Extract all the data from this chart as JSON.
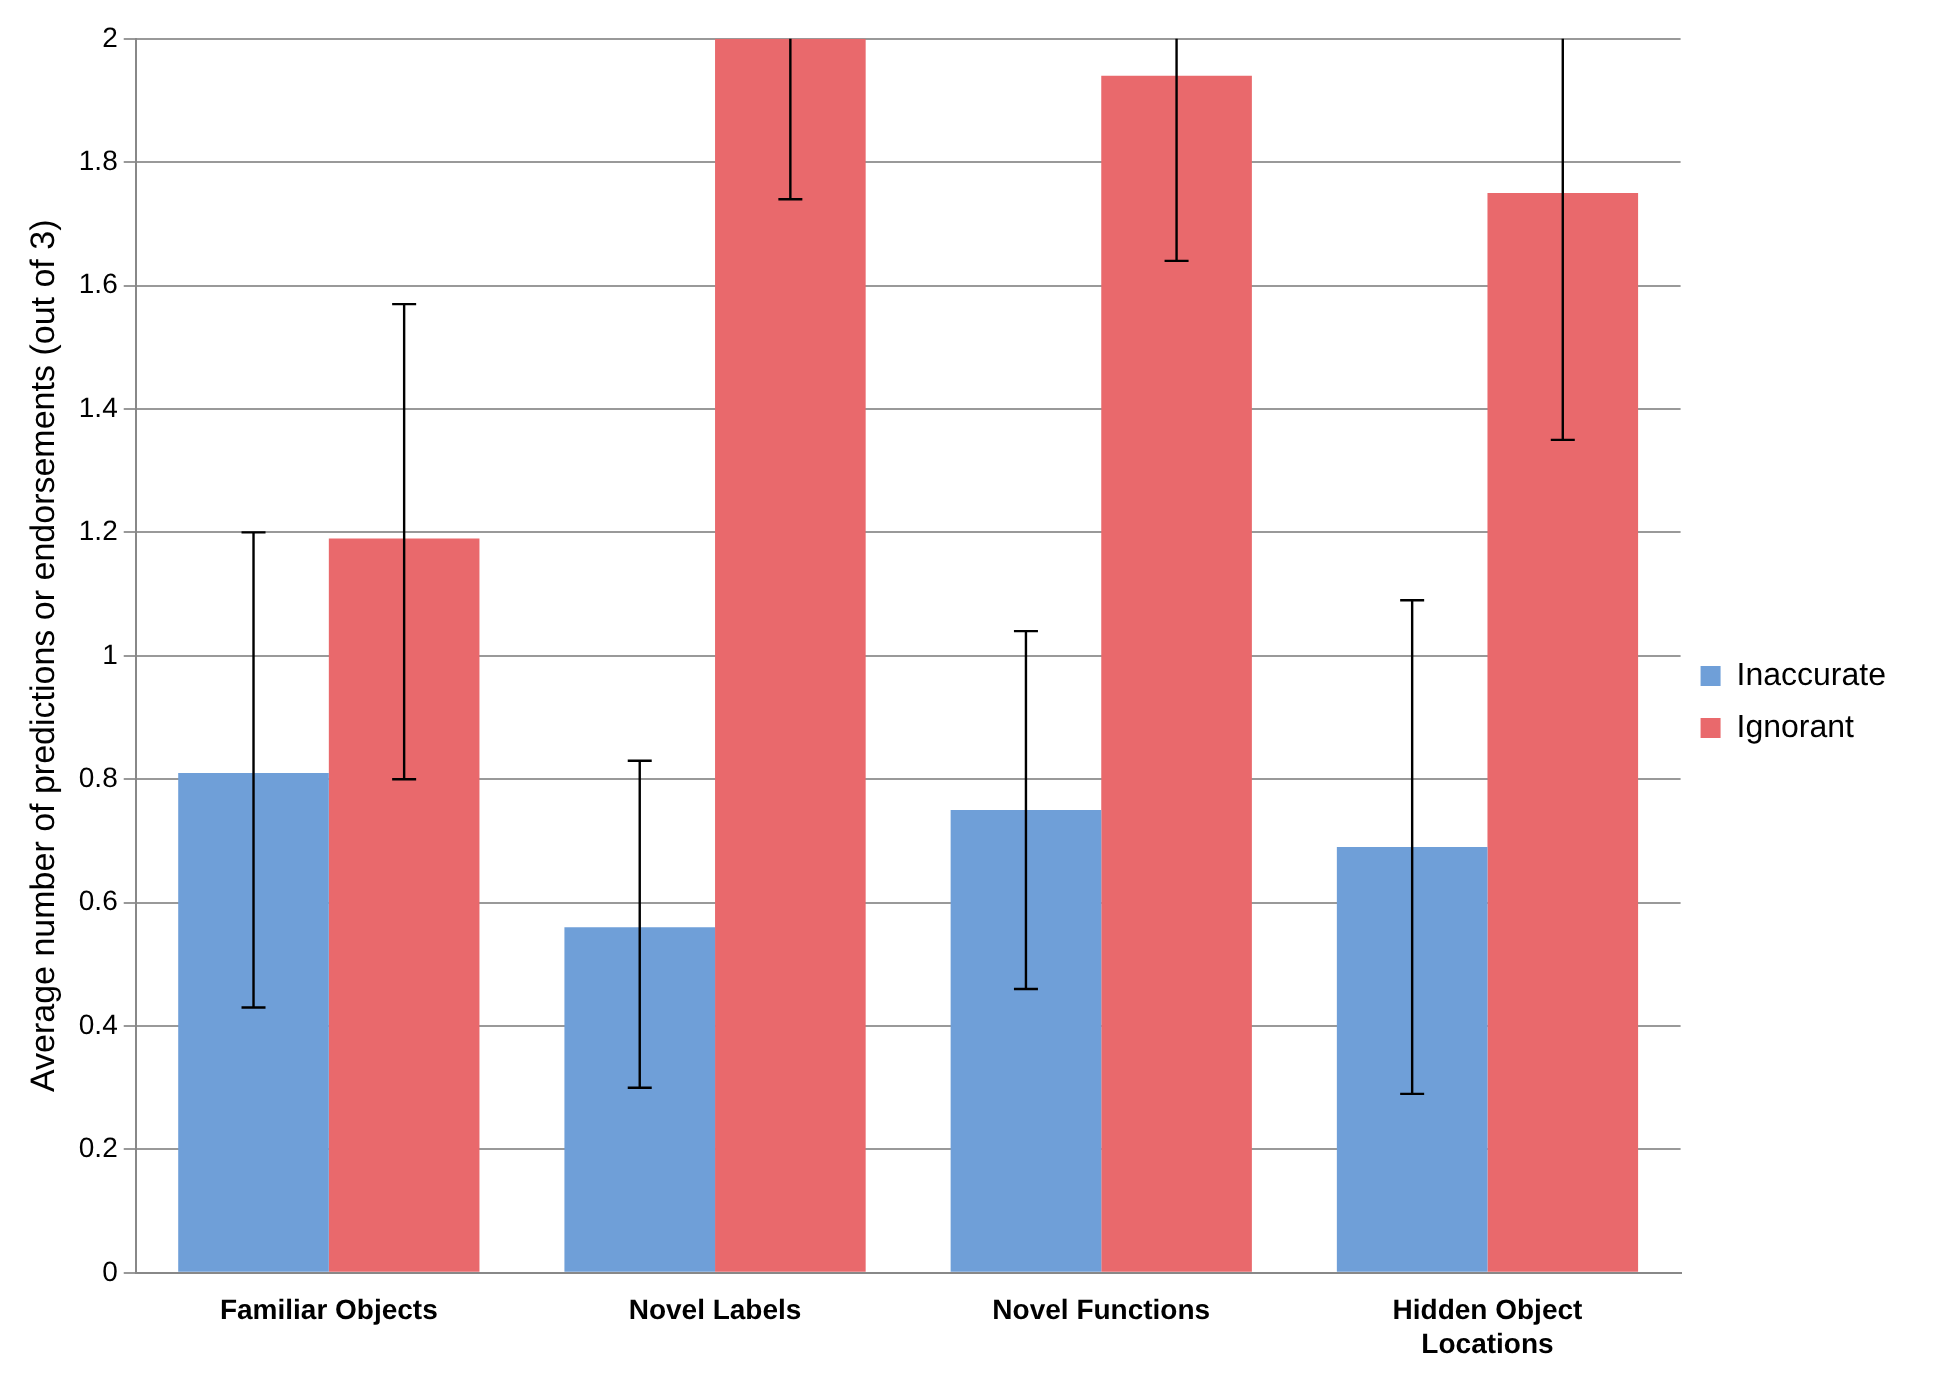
{
  "chart_data": {
    "type": "bar",
    "ylabel": "Average number of predictions or endorsements (out of 3)",
    "categories": [
      "Familiar Objects",
      "Novel Labels",
      "Novel Functions",
      "Hidden Object Locations"
    ],
    "series": [
      {
        "name": "Inaccurate",
        "color": "#6f9fd8",
        "values": [
          0.81,
          0.56,
          0.75,
          0.69
        ],
        "errors": [
          [
            0.43,
            1.2
          ],
          [
            0.3,
            0.83
          ],
          [
            0.46,
            1.04
          ],
          [
            0.29,
            1.09
          ]
        ]
      },
      {
        "name": "Ignorant",
        "color": "#e9696c",
        "values": [
          1.19,
          2.0,
          1.94,
          1.75
        ],
        "errors": [
          [
            0.8,
            1.57
          ],
          [
            1.74,
            2
          ],
          [
            1.64,
            2
          ],
          [
            1.35,
            2
          ]
        ]
      }
    ],
    "ylim": [
      0,
      2
    ],
    "yticks": [
      0,
      0.2,
      0.4,
      0.6,
      0.8,
      1,
      1.2,
      1.4,
      1.6,
      1.8,
      2
    ],
    "grid": "y",
    "legend": "right"
  }
}
